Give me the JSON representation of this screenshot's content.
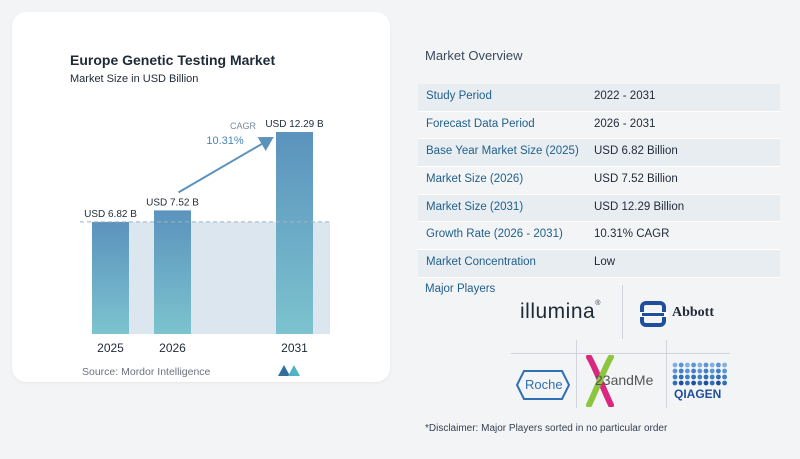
{
  "chart_data": {
    "type": "bar",
    "title": "Europe Genetic Testing Market",
    "subtitle": "Market Size in USD Billion",
    "categories": [
      "2025",
      "2026",
      "2031"
    ],
    "values": [
      6.82,
      7.52,
      12.29
    ],
    "data_labels": [
      "USD 6.82 B",
      "USD 7.52 B",
      "USD 12.29 B"
    ],
    "cagr_label": "CAGR",
    "cagr_value": "10.31%",
    "colors": {
      "bar_top": "#5b93bd",
      "bar_bottom": "#7cc3cf",
      "band": "#dbe6ef",
      "arrow": "#5b93bd",
      "dash": "#9fb3c4"
    }
  },
  "source": "Source:  Mordor Intelligence",
  "overview": {
    "title": "Market Overview",
    "rows": [
      {
        "label": "Study Period",
        "value": "2022 - 2031"
      },
      {
        "label": "Forecast Data Period",
        "value": "2026 - 2031"
      },
      {
        "label": "Base Year Market Size (2025)",
        "value": "USD 6.82 Billion"
      },
      {
        "label": "Market Size (2026)",
        "value": "USD 7.52 Billion"
      },
      {
        "label": "Market Size (2031)",
        "value": "USD 12.29 Billion"
      },
      {
        "label": "Growth Rate (2026 - 2031)",
        "value": "10.31% CAGR"
      },
      {
        "label": "Market Concentration",
        "value": "Low"
      }
    ]
  },
  "players": {
    "label": "Major Players",
    "logos": {
      "illumina": "illumina",
      "abbott": "Abbott",
      "roche": "Roche",
      "twentythree": "23andMe",
      "qiagen": "QIAGEN"
    }
  },
  "disclaimer": "*Disclaimer: Major Players sorted in no particular order"
}
